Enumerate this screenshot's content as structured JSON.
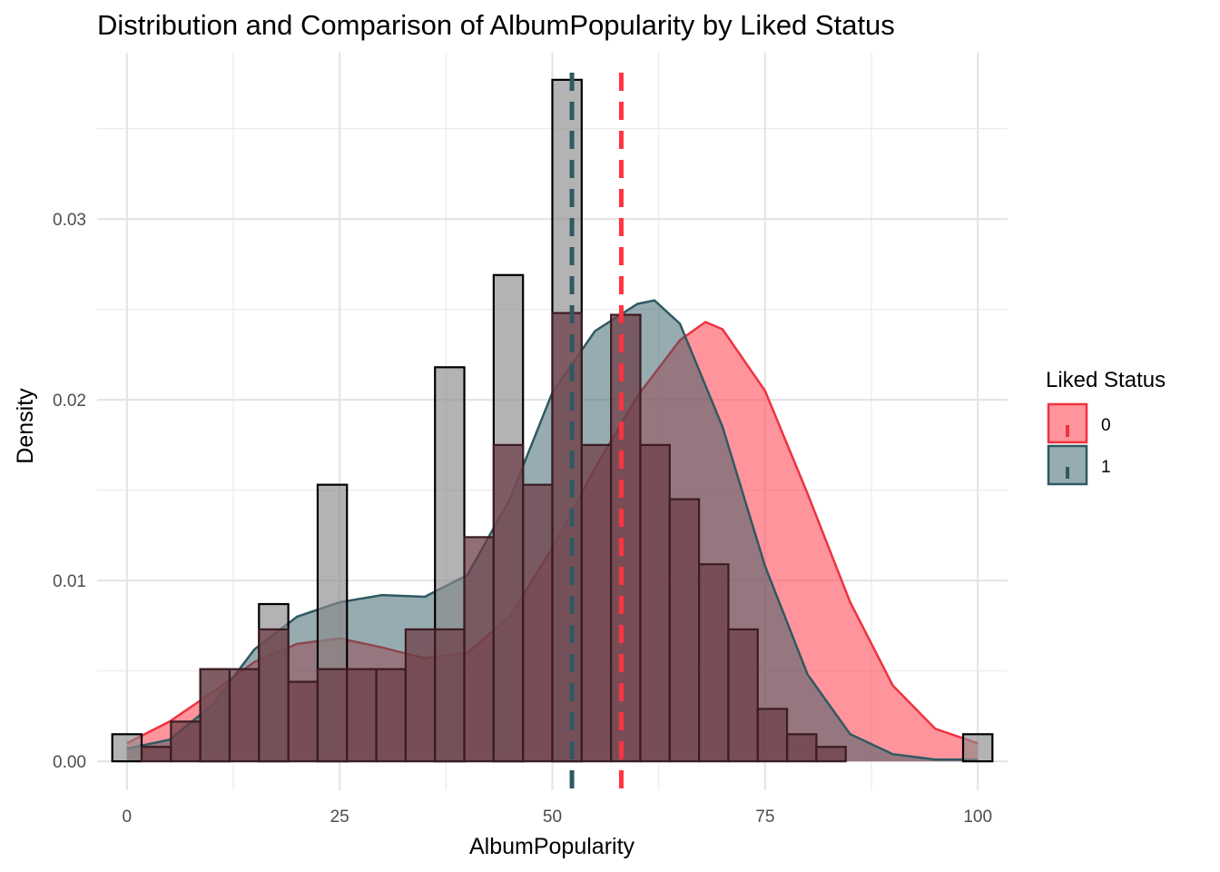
{
  "chart_data": {
    "type": "histogram",
    "title": "Distribution and Comparison of AlbumPopularity by Liked Status",
    "xlabel": "AlbumPopularity",
    "ylabel": "Density",
    "xlim": [
      -3.5,
      103.5
    ],
    "ylim": [
      -0.0016,
      0.0392
    ],
    "x_ticks": [
      0,
      25,
      50,
      75,
      100
    ],
    "x_tick_labels": [
      "0",
      "25",
      "50",
      "75",
      "100"
    ],
    "y_ticks": [
      0,
      0.01,
      0.02,
      0.03
    ],
    "y_tick_labels": [
      "0.00",
      "0.01",
      "0.02",
      "0.03"
    ],
    "grid": true,
    "legend": {
      "title": "Liked Status",
      "position": "right",
      "entries": [
        {
          "label": "0",
          "fill": "#ff4d5a",
          "stroke": "#ee3340"
        },
        {
          "label": "1",
          "fill": "#2f5962",
          "stroke": "#2f5962"
        }
      ]
    },
    "bins": {
      "start": -1.72,
      "width": 3.448
    },
    "histogram_liked_1": [
      0.0015,
      0,
      0,
      0.0051,
      0,
      0.0087,
      0,
      0.0153,
      0,
      0,
      0,
      0.0218,
      0,
      0.0269,
      0,
      0.0377,
      0,
      0,
      0,
      0,
      0,
      0,
      0,
      0,
      0,
      0,
      0,
      0,
      0,
      0.0015
    ],
    "histogram_liked_0": [
      0,
      0.0008,
      0.0022,
      0.0051,
      0.0051,
      0.0073,
      0.0044,
      0.0051,
      0.0051,
      0.0051,
      0.0073,
      0.0073,
      0.0124,
      0.0175,
      0.0153,
      0.0248,
      0.0175,
      0.0247,
      0.0175,
      0.0145,
      0.0109,
      0.0073,
      0.0029,
      0.0015,
      0.0008,
      0,
      0,
      0,
      0,
      0
    ],
    "density_liked_0": {
      "x": [
        0,
        5,
        10,
        15,
        20,
        25,
        30,
        35,
        40,
        45,
        50,
        55,
        60,
        65,
        68,
        70,
        75,
        80,
        85,
        90,
        95,
        100
      ],
      "y": [
        0.001,
        0.0022,
        0.0038,
        0.0055,
        0.0065,
        0.0068,
        0.0063,
        0.0057,
        0.006,
        0.008,
        0.0118,
        0.0162,
        0.0202,
        0.0233,
        0.0243,
        0.0239,
        0.0205,
        0.0148,
        0.0088,
        0.0042,
        0.0018,
        0.001
      ]
    },
    "density_liked_1": {
      "x": [
        0,
        5,
        10,
        15,
        20,
        25,
        30,
        35,
        40,
        45,
        50,
        55,
        60,
        62,
        65,
        70,
        75,
        80,
        85,
        90,
        95,
        100
      ],
      "y": [
        0.0007,
        0.0012,
        0.0031,
        0.0062,
        0.008,
        0.0088,
        0.0092,
        0.0091,
        0.0103,
        0.0145,
        0.0204,
        0.0238,
        0.0253,
        0.0255,
        0.0242,
        0.0185,
        0.0108,
        0.0048,
        0.0015,
        0.0004,
        0.0001,
        0.0001
      ]
    },
    "mean_lines": [
      {
        "group": "1",
        "x": 52.3,
        "color": "#2f5962"
      },
      {
        "group": "0",
        "x": 58.1,
        "color": "#ff3340"
      }
    ]
  }
}
